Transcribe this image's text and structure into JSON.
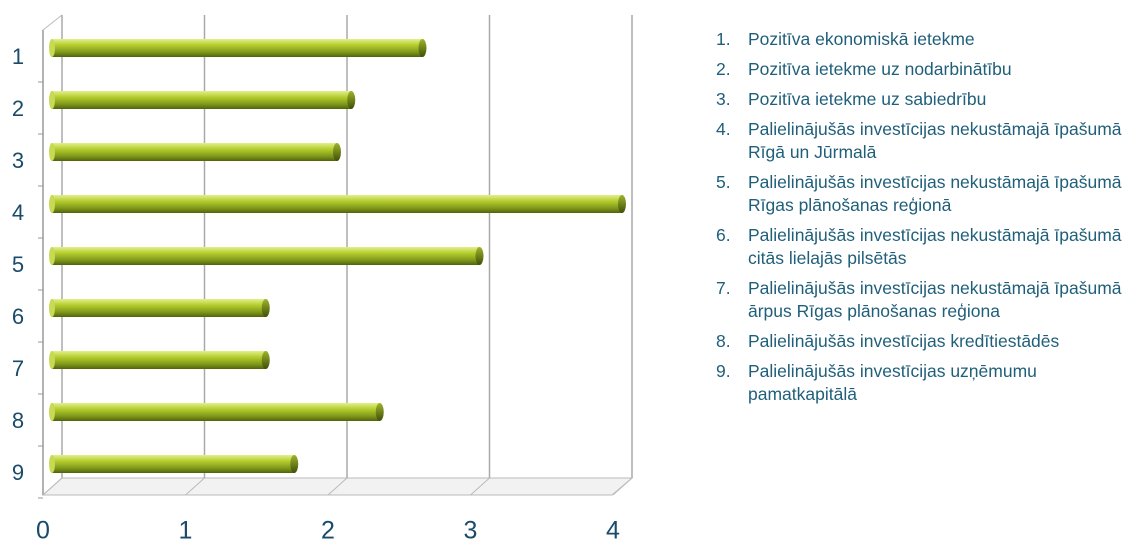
{
  "chart_data": {
    "type": "bar",
    "orientation": "horizontal",
    "categories": [
      "1",
      "2",
      "3",
      "4",
      "5",
      "6",
      "7",
      "8",
      "9"
    ],
    "values": [
      2.6,
      2.1,
      2.0,
      4.0,
      3.0,
      1.5,
      1.5,
      2.3,
      1.7
    ],
    "color": "#9ab51f",
    "xlim": [
      0,
      4
    ],
    "xticks": [
      0,
      1,
      2,
      3,
      4
    ],
    "grid": true,
    "legend": [
      {
        "number": "1.",
        "text": "Pozitīva ekonomiskā ietekme"
      },
      {
        "number": "2.",
        "text": "Pozitīva ietekme uz nodarbinātību"
      },
      {
        "number": "3.",
        "text": "Pozitīva ietekme uz sabiedrību"
      },
      {
        "number": "4.",
        "text": "Palielinājušās investīcijas nekustāmajā īpašumā Rīgā un Jūrmalā"
      },
      {
        "number": "5.",
        "text": "Palielinājušās investīcijas nekustāmajā īpašumā Rīgas plānošanas reģionā"
      },
      {
        "number": "6.",
        "text": "Palielinājušās investīcijas nekustāmajā īpašumā citās lielajās pilsētās"
      },
      {
        "number": "7.",
        "text": "Palielinājušās investīcijas nekustāmajā īpašumā ārpus Rīgas plānošanas reģiona"
      },
      {
        "number": "8.",
        "text": "Palielinājušās investīcijas kredītiestādēs"
      },
      {
        "number": "9.",
        "text": "Palielinājušās investīcijas uzņēmumu pamatkapitālā"
      }
    ]
  }
}
